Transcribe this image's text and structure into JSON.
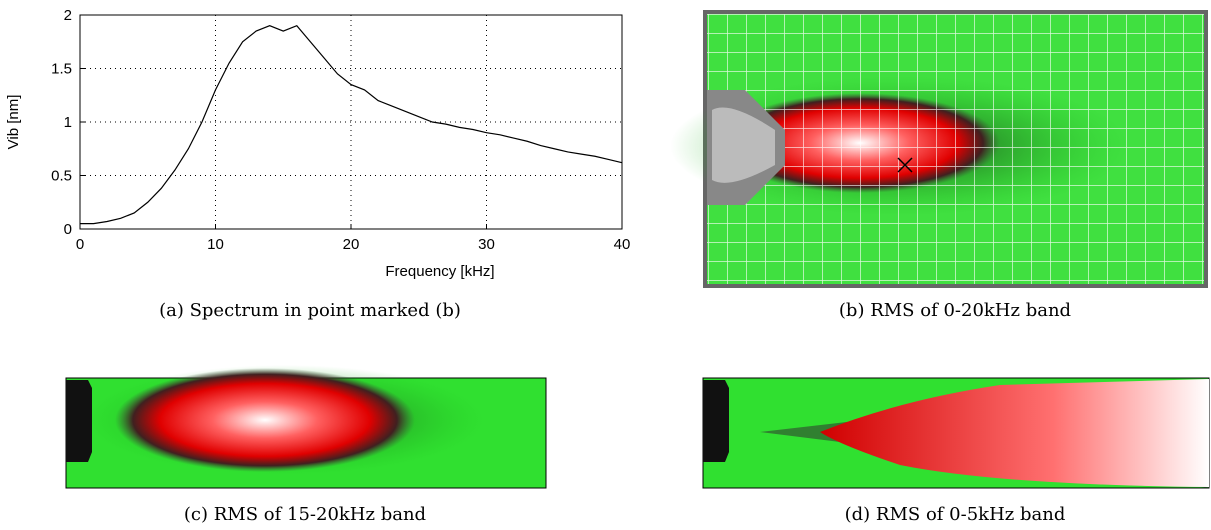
{
  "chart_data": {
    "type": "line",
    "xlabel": "Frequency [kHz]",
    "ylabel": "Vib [nm]",
    "x": [
      0,
      1,
      2,
      3,
      4,
      5,
      6,
      7,
      8,
      9,
      10,
      11,
      12,
      13,
      14,
      15,
      16,
      17,
      18,
      19,
      20,
      21,
      22,
      23,
      24,
      25,
      26,
      27,
      28,
      29,
      30,
      31,
      32,
      33,
      34,
      35,
      36,
      37,
      38,
      39,
      40
    ],
    "values": [
      0.05,
      0.05,
      0.07,
      0.1,
      0.15,
      0.25,
      0.38,
      0.55,
      0.75,
      1.0,
      1.3,
      1.55,
      1.75,
      1.85,
      1.9,
      1.85,
      1.9,
      1.75,
      1.6,
      1.45,
      1.35,
      1.3,
      1.2,
      1.15,
      1.1,
      1.05,
      1.0,
      0.98,
      0.95,
      0.93,
      0.9,
      0.88,
      0.85,
      0.82,
      0.78,
      0.75,
      0.72,
      0.7,
      0.68,
      0.65,
      0.62
    ],
    "color": "#000000",
    "xlim": [
      0,
      40
    ],
    "xticks": [
      0,
      10,
      20,
      30,
      40
    ],
    "ylim": [
      0,
      2
    ],
    "yticks": [
      0,
      0.5,
      1,
      1.5,
      2
    ],
    "grid": true
  },
  "captions": [
    "(a) Spectrum in point marked (b)",
    "(b) RMS of 0-20kHz band",
    "(c) RMS of 15-20kHz band",
    "(d) RMS of 0-5kHz band"
  ]
}
